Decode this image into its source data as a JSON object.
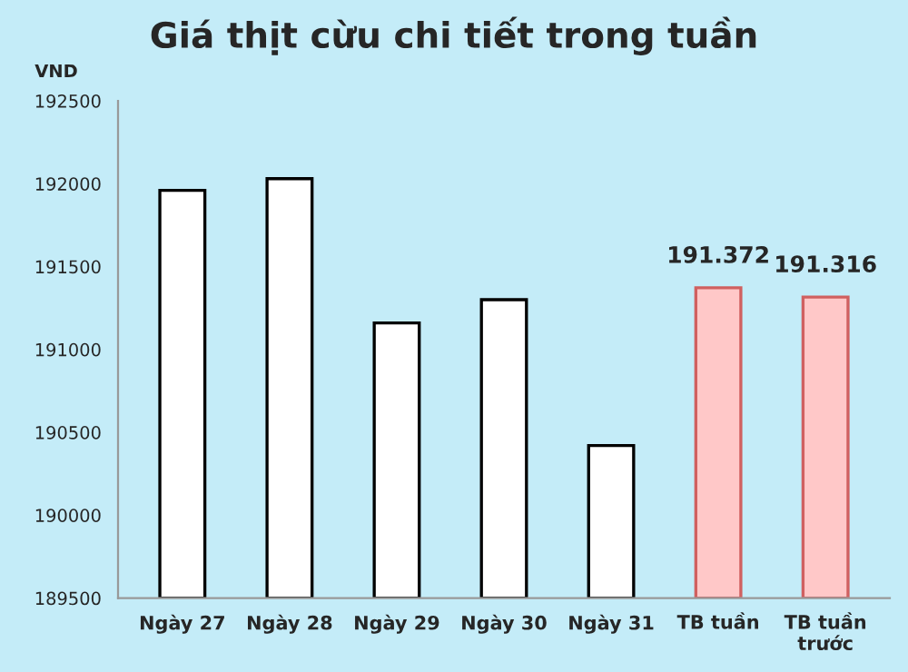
{
  "chart_data": {
    "type": "bar",
    "title": "Giá thịt cừu chi tiết trong tuần",
    "ylabel": "VND",
    "categories": [
      "Ngày 27",
      "Ngày 28",
      "Ngày 29",
      "Ngày 30",
      "Ngày 31",
      "TB tuần",
      "TB tuần\ntrước"
    ],
    "values": [
      191960,
      192030,
      191160,
      191300,
      190420,
      191372,
      191316
    ],
    "colors": [
      "#ffffff",
      "#ffffff",
      "#ffffff",
      "#ffffff",
      "#ffffff",
      "#ffc8c8",
      "#ffc8c8"
    ],
    "value_labels": [
      null,
      null,
      null,
      null,
      null,
      "191.372",
      "191.316"
    ],
    "ylim": [
      189500,
      192500
    ],
    "yticks": [
      189500,
      190000,
      190500,
      191000,
      191500,
      192000,
      192500
    ],
    "grid": false,
    "legend": false
  }
}
